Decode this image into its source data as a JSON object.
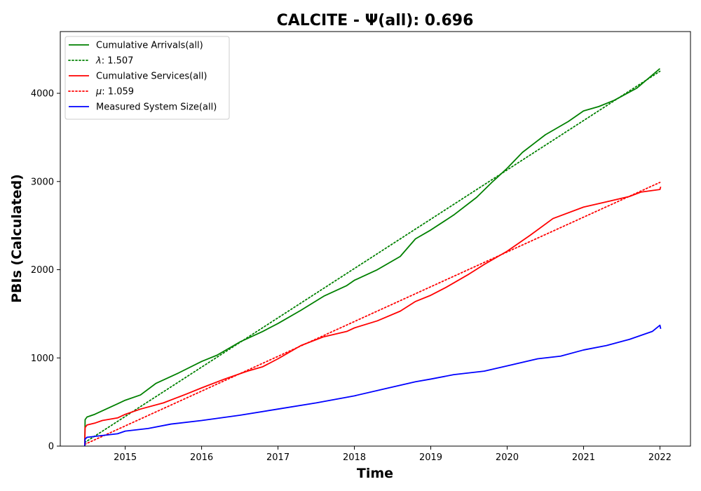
{
  "chart_data": {
    "type": "line",
    "title": "CALCITE -  Ψ(all): 0.696",
    "xlabel": "Time",
    "ylabel": "PBIs (Calculated)",
    "xlim": [
      2014.15,
      2022.4
    ],
    "ylim": [
      0,
      4700
    ],
    "x_ticks": [
      2015,
      2016,
      2017,
      2018,
      2019,
      2020,
      2021,
      2022
    ],
    "x_tick_labels": [
      "2015",
      "2016",
      "2017",
      "2018",
      "2019",
      "2020",
      "2021",
      "2022"
    ],
    "y_ticks": [
      0,
      1000,
      2000,
      3000,
      4000
    ],
    "y_tick_labels": [
      "0",
      "1000",
      "2000",
      "3000",
      "4000"
    ],
    "grid": false,
    "legend_position": "top-left",
    "series": [
      {
        "name": "Cumulative Arrivals(all)",
        "legend_text": "Cumulative Arrivals(all)",
        "color": "#008000",
        "style": "solid",
        "x": [
          2014.47,
          2014.475,
          2014.5,
          2014.6,
          2014.75,
          2014.9,
          2015.0,
          2015.2,
          2015.4,
          2015.7,
          2016.0,
          2016.2,
          2016.5,
          2016.8,
          2017.0,
          2017.3,
          2017.6,
          2017.9,
          2018.0,
          2018.3,
          2018.6,
          2018.8,
          2019.0,
          2019.3,
          2019.6,
          2019.8,
          2020.0,
          2020.2,
          2020.5,
          2020.8,
          2021.0,
          2021.2,
          2021.4,
          2021.7,
          2022.0
        ],
        "y": [
          0,
          300,
          330,
          360,
          420,
          480,
          520,
          580,
          710,
          830,
          960,
          1030,
          1180,
          1300,
          1390,
          1540,
          1700,
          1820,
          1880,
          2000,
          2150,
          2350,
          2450,
          2620,
          2820,
          2990,
          3150,
          3330,
          3530,
          3680,
          3800,
          3850,
          3920,
          4060,
          4280
        ]
      },
      {
        "name": "λ: 1.507",
        "legend_text": "λ: 1.507",
        "legend_symbol": "λ",
        "legend_value": ": 1.507",
        "color": "#008000",
        "style": "dotted",
        "x": [
          2014.47,
          2022.0
        ],
        "y": [
          40,
          4250
        ]
      },
      {
        "name": "Cumulative Services(all)",
        "legend_text": "Cumulative Services(all)",
        "color": "#ff0000",
        "style": "solid",
        "x": [
          2014.47,
          2014.475,
          2014.5,
          2014.6,
          2014.7,
          2014.9,
          2015.0,
          2015.2,
          2015.5,
          2015.8,
          2016.0,
          2016.3,
          2016.6,
          2016.8,
          2017.0,
          2017.3,
          2017.6,
          2017.9,
          2018.0,
          2018.3,
          2018.6,
          2018.8,
          2019.0,
          2019.2,
          2019.5,
          2019.7,
          2020.0,
          2020.3,
          2020.6,
          2021.0,
          2021.3,
          2021.6,
          2021.75,
          2022.0,
          2022.01
        ],
        "y": [
          0,
          210,
          240,
          260,
          290,
          320,
          360,
          420,
          490,
          590,
          660,
          760,
          850,
          900,
          990,
          1140,
          1240,
          1300,
          1340,
          1420,
          1530,
          1640,
          1710,
          1800,
          1950,
          2060,
          2210,
          2390,
          2580,
          2710,
          2770,
          2830,
          2880,
          2910,
          2940
        ]
      },
      {
        "name": "μ: 1.059",
        "legend_text": "μ: 1.059",
        "legend_symbol": "μ",
        "legend_value": ": 1.059",
        "color": "#ff0000",
        "style": "dotted",
        "x": [
          2014.47,
          2022.0
        ],
        "y": [
          20,
          2990
        ]
      },
      {
        "name": "Measured System Size(all)",
        "legend_text": "Measured System Size(all)",
        "color": "#0000ff",
        "style": "solid",
        "x": [
          2014.47,
          2014.475,
          2014.5,
          2014.7,
          2014.9,
          2015.0,
          2015.3,
          2015.6,
          2016.0,
          2016.5,
          2017.0,
          2017.5,
          2018.0,
          2018.4,
          2018.8,
          2019.0,
          2019.3,
          2019.7,
          2020.0,
          2020.4,
          2020.7,
          2021.0,
          2021.3,
          2021.6,
          2021.9,
          2022.0,
          2022.01
        ],
        "y": [
          0,
          80,
          100,
          120,
          140,
          170,
          200,
          250,
          290,
          350,
          420,
          490,
          570,
          650,
          730,
          760,
          810,
          850,
          910,
          990,
          1020,
          1090,
          1140,
          1210,
          1300,
          1370,
          1330
        ]
      }
    ]
  }
}
